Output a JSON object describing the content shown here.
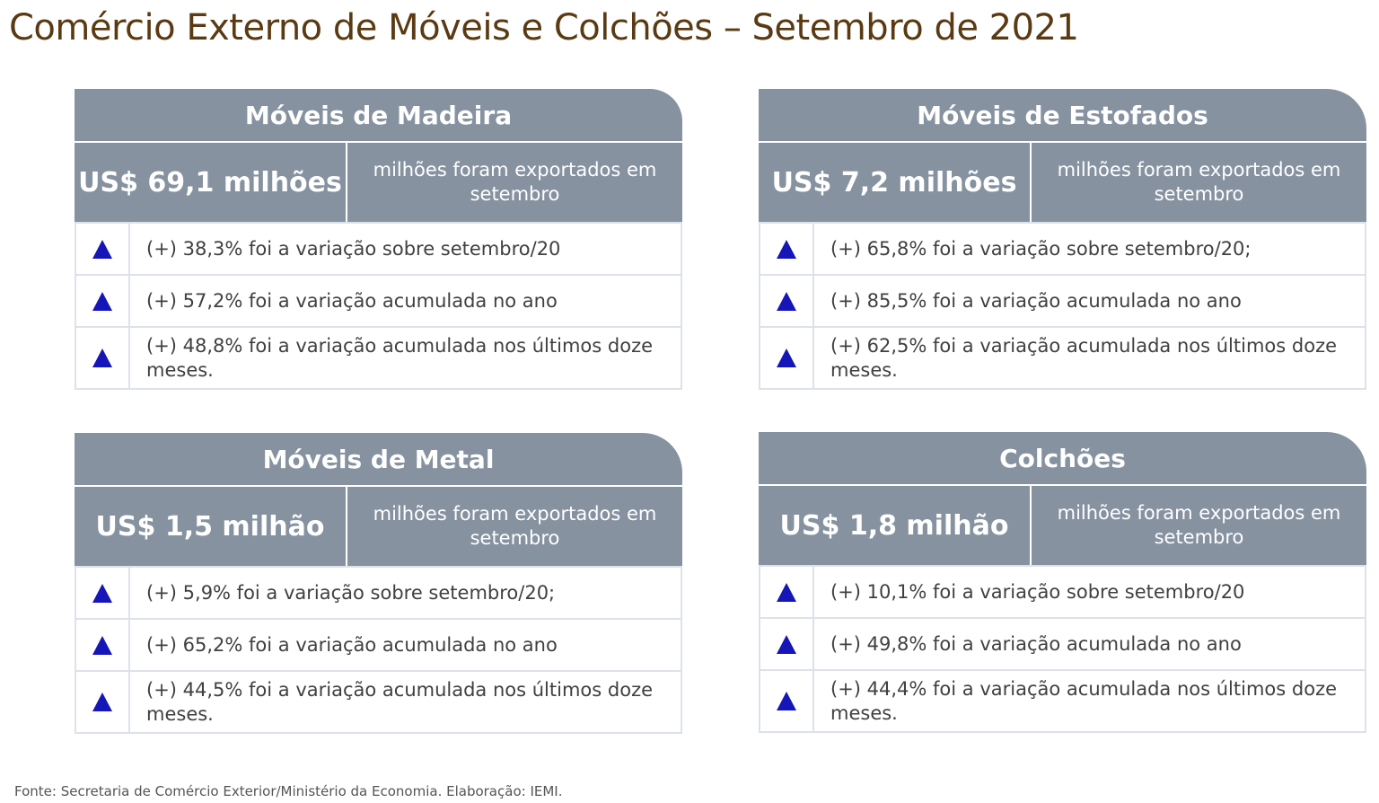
{
  "title": "Comércio Externo de Móveis e Colchões – Setembro de 2021",
  "colors": {
    "title": "#5a3a12",
    "header_bg": "#8792a1",
    "up_arrow": "#1515b8",
    "border": "#dde2ea"
  },
  "cards": [
    {
      "name": "Móveis de Madeira",
      "value": "US$ 69,1 milhões",
      "value_desc": "milhões foram exportados em setembro",
      "rows": [
        {
          "icon": "up-arrow-icon",
          "text": "(+) 38,3% foi a variação sobre setembro/20"
        },
        {
          "icon": "up-arrow-icon",
          "text": "(+) 57,2% foi a variação acumulada no ano"
        },
        {
          "icon": "up-arrow-icon",
          "text": "(+) 48,8% foi a variação acumulada nos últimos doze meses."
        }
      ]
    },
    {
      "name": "Móveis de Estofados",
      "value": "US$ 7,2 milhões",
      "value_desc": "milhões foram exportados em setembro",
      "rows": [
        {
          "icon": "up-arrow-icon",
          "text": "(+) 65,8% foi a variação sobre setembro/20;"
        },
        {
          "icon": "up-arrow-icon",
          "text": "(+) 85,5% foi a variação acumulada no ano"
        },
        {
          "icon": "up-arrow-icon",
          "text": "(+) 62,5% foi a variação acumulada nos últimos doze meses."
        }
      ]
    },
    {
      "name": "Móveis de Metal",
      "value": "US$ 1,5 milhão",
      "value_desc": "milhões foram exportados em setembro",
      "rows": [
        {
          "icon": "up-arrow-icon",
          "text": "(+) 5,9% foi a variação sobre setembro/20;"
        },
        {
          "icon": "up-arrow-icon",
          "text": "(+) 65,2% foi a variação acumulada no ano"
        },
        {
          "icon": "up-arrow-icon",
          "text": "(+) 44,5% foi a variação acumulada nos últimos doze meses."
        }
      ]
    },
    {
      "name": "Colchões",
      "value": "US$ 1,8 milhão",
      "value_desc": "milhões foram exportados em setembro",
      "rows": [
        {
          "icon": "up-arrow-icon",
          "text": "(+) 10,1% foi a variação sobre setembro/20"
        },
        {
          "icon": "up-arrow-icon",
          "text": "(+) 49,8% foi a variação acumulada no ano"
        },
        {
          "icon": "up-arrow-icon",
          "text": "(+) 44,4% foi a variação acumulada nos últimos doze meses."
        }
      ]
    }
  ],
  "source": "Fonte: Secretaria de Comércio Exterior/Ministério da Economia. Elaboração: IEMI."
}
